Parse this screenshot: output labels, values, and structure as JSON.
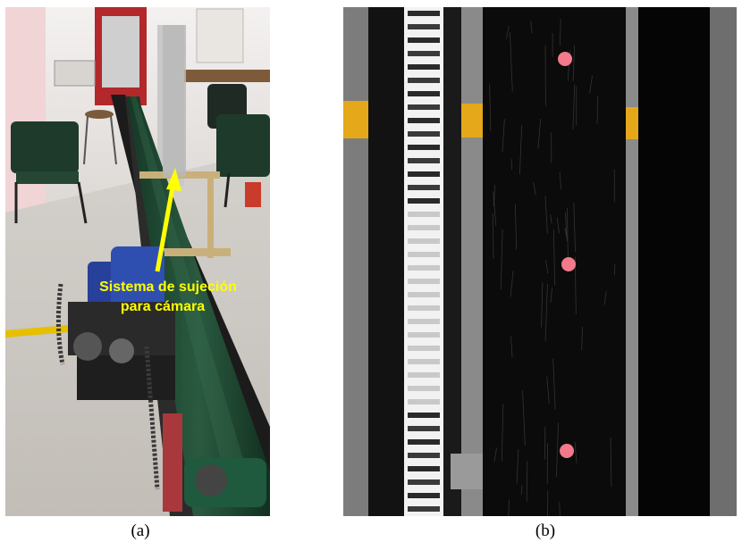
{
  "figure": {
    "panel_a": {
      "caption": "(a)",
      "annotation_line1": "Sistema de sujeción",
      "annotation_line2": "para cámara",
      "colors": {
        "annotation": "#ffff00",
        "belt": "#1f4a34",
        "frame": "#1a1a1a",
        "motor": "#27409a"
      }
    },
    "panel_b": {
      "caption": "(b)",
      "colors": {
        "belt": "#0b0b0b",
        "marker": "#f27a8a",
        "stripe": "#e4a81a"
      },
      "marker_count": 3
    }
  }
}
